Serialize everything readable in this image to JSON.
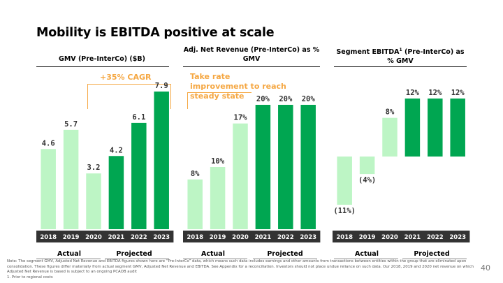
{
  "title": "Mobility is EBITDA positive at scale",
  "colors": {
    "light": "#bdf5c5",
    "dark": "#00a651",
    "axis_band": "#333333",
    "accent": "#f5a742"
  },
  "footer": {
    "note": "Note: The segment GMV, Adjusted Net Revenue and EBITDA figures shown here are “Pre-InterCo” data, which means such data includes earnings and other amounts from transactions between entities within the group that are eliminated upon consolidation. These figures differ materially from actual segment GMV, Adjusted Net Revenue and EBITDA. See Appendix for a reconciliation. Investors should not place undue reliance on such data. Our 2018, 2019 and 2020 net revenue on which Adjusted Net Revenue is based is subject to an ongoing PCAOB audit",
    "footnote": "1.     Prior to regional costs",
    "page": "40"
  },
  "panels": [
    {
      "title": "GMV (Pre-InterCo) ($B)",
      "annotation": "+35% CAGR",
      "group_actual": "Actual",
      "group_projected": "Projected"
    },
    {
      "title": "Adj. Net Revenue (Pre-InterCo) as % GMV",
      "annotation": "Take rate improvement to reach steady state",
      "group_actual": "Actual",
      "group_projected": "Projected"
    },
    {
      "title": "Segment EBITDA",
      "title_sup": "1",
      "title_tail": " (Pre-InterCo) as % GMV",
      "group_actual": "Actual",
      "group_projected": "Projected"
    }
  ],
  "chart_data": [
    {
      "type": "bar",
      "title": "GMV (Pre-InterCo) ($B)",
      "categories": [
        "2018",
        "2019",
        "2020",
        "2021",
        "2022",
        "2023"
      ],
      "values": [
        4.6,
        5.7,
        3.2,
        4.2,
        6.1,
        7.9
      ],
      "labels": [
        "4.6",
        "5.7",
        "3.2",
        "4.2",
        "6.1",
        "7.9"
      ],
      "status": [
        "actual",
        "actual",
        "actual",
        "projected",
        "projected",
        "projected"
      ],
      "annotation": "+35% CAGR",
      "ylim": [
        0,
        7.9
      ]
    },
    {
      "type": "bar",
      "title": "Adj. Net Revenue (Pre-InterCo) as % GMV",
      "categories": [
        "2018",
        "2019",
        "2020",
        "2021",
        "2022",
        "2023"
      ],
      "values": [
        8,
        10,
        17,
        20,
        20,
        20
      ],
      "labels": [
        "8%",
        "10%",
        "17%",
        "20%",
        "20%",
        "20%"
      ],
      "status": [
        "actual",
        "actual",
        "actual",
        "projected",
        "projected",
        "projected"
      ],
      "annotation": "Take rate improvement to reach steady state",
      "ylim": [
        0,
        20
      ]
    },
    {
      "type": "bar",
      "title": "Segment EBITDA1 (Pre-InterCo) as % GMV",
      "categories": [
        "2018",
        "2019",
        "2020",
        "2021",
        "2022",
        "2023"
      ],
      "values": [
        -11,
        -4,
        8,
        12,
        12,
        12
      ],
      "labels": [
        "(11%)",
        "(4%)",
        "8%",
        "12%",
        "12%",
        "12%"
      ],
      "status": [
        "actual",
        "actual",
        "actual",
        "projected",
        "projected",
        "projected"
      ],
      "ylim": [
        -11,
        12
      ]
    }
  ]
}
